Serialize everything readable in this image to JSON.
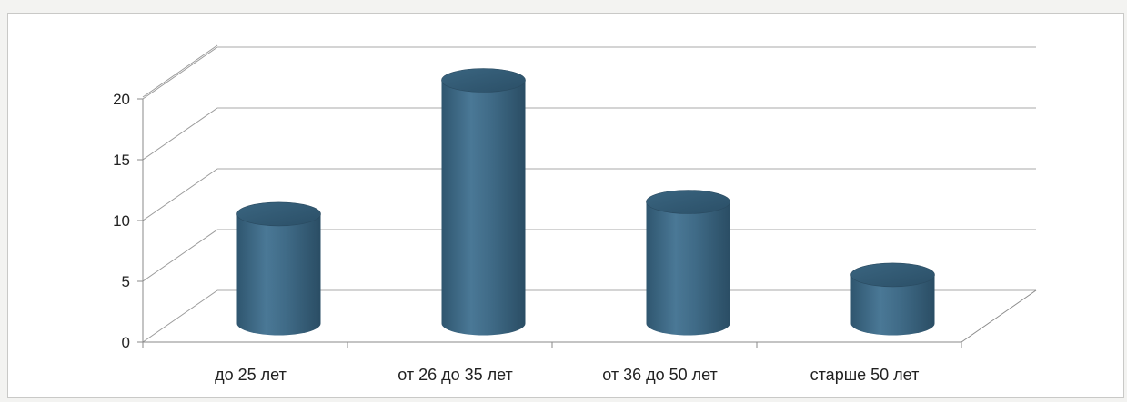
{
  "chart_data": {
    "type": "bar",
    "style": "3d-cylinder",
    "categories": [
      "до 25 лет",
      "от 26 до 35 лет",
      "от 36 до 50 лет",
      "старше 50 лет"
    ],
    "values": [
      9,
      20,
      10,
      4
    ],
    "ylim": [
      0,
      20
    ],
    "yticks": [
      "0",
      "5",
      "10",
      "15",
      "20"
    ],
    "grid": true,
    "legend": "none",
    "bar_color": "#3f6a86"
  }
}
